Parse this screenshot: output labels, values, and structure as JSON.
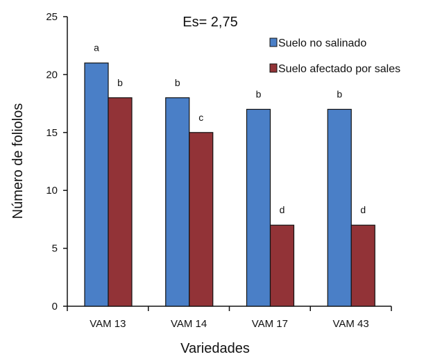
{
  "chart_data": {
    "type": "bar",
    "categories": [
      "VAM 13",
      "VAM 14",
      "VAM 17",
      "VAM 43"
    ],
    "series": [
      {
        "name": "Suelo no salinado",
        "color": "#4a7fc7",
        "values": [
          21,
          18,
          17,
          17
        ],
        "labels": [
          "a",
          "b",
          "b",
          "b"
        ]
      },
      {
        "name": "Suelo afectado por sales",
        "color": "#923337",
        "values": [
          18,
          15,
          7,
          7
        ],
        "labels": [
          "b",
          "c",
          "d",
          "d"
        ]
      }
    ],
    "xlabel": "Variedades",
    "ylabel": "Número de foliolos",
    "ylim": [
      0,
      25
    ],
    "yticks": [
      0,
      5,
      10,
      15,
      20,
      25
    ],
    "annotation": "Es= 2,75",
    "grid": false,
    "legend": "top-right"
  }
}
